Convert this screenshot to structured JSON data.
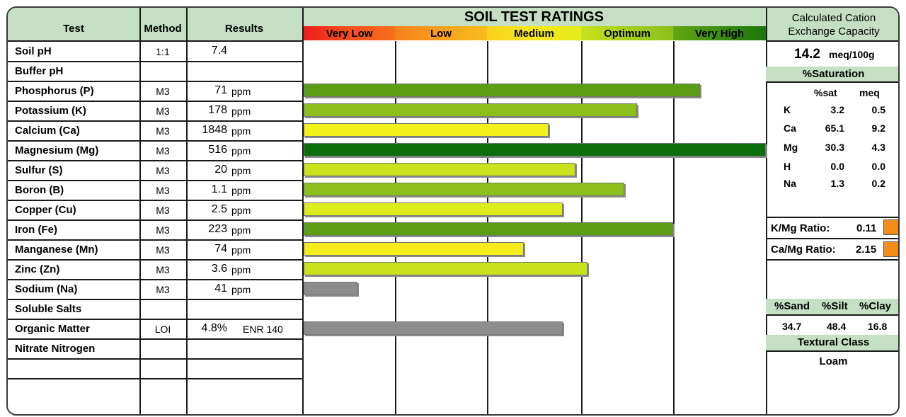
{
  "chart_data": {
    "type": "bar",
    "title": "SOIL TEST RATINGS",
    "rating_levels": [
      "Very Low",
      "Low",
      "Medium",
      "Optimum",
      "Very High"
    ],
    "columns": {
      "test": "Test",
      "method": "Method",
      "results": "Results"
    },
    "categories": [
      "Soil pH",
      "Buffer pH",
      "Phosphorus (P)",
      "Potassium (K)",
      "Calcium (Ca)",
      "Magnesium (Mg)",
      "Sulfur (S)",
      "Boron (B)",
      "Copper (Cu)",
      "Iron (Fe)",
      "Manganese (Mn)",
      "Zinc (Zn)",
      "Sodium (Na)",
      "Soluble Salts",
      "Organic Matter",
      "Nitrate Nitrogen",
      "",
      ""
    ],
    "methods": [
      "1:1",
      "",
      "M3",
      "M3",
      "M3",
      "M3",
      "M3",
      "M3",
      "M3",
      "M3",
      "M3",
      "M3",
      "M3",
      "",
      "LOI",
      "",
      "",
      ""
    ],
    "results": [
      "7.4",
      "",
      "71",
      "178",
      "1848",
      "516",
      "20",
      "1.1",
      "2.5",
      "223",
      "74",
      "3.6",
      "41",
      "",
      "4.8%",
      "",
      "",
      ""
    ],
    "units": [
      "",
      "",
      "ppm",
      "ppm",
      "ppm",
      "ppm",
      "ppm",
      "ppm",
      "ppm",
      "ppm",
      "ppm",
      "ppm",
      "ppm",
      "",
      "ENR 140",
      "",
      "",
      ""
    ],
    "ratings": [
      null,
      null,
      4.29,
      3.61,
      2.65,
      5.0,
      2.94,
      3.47,
      2.8,
      4.0,
      2.38,
      3.07,
      0.58,
      null,
      2.8,
      null,
      null,
      null
    ],
    "bar_colors": [
      null,
      null,
      "#5c9c14",
      "#8cbe1c",
      "#f2f21c",
      "#0a6e0a",
      "#c8e21c",
      "#8cbe1c",
      "#dcec1c",
      "#5c9c14",
      "#f4ec1c",
      "#c8e21c",
      "#8c8c8c",
      null,
      "#8c8c8c",
      null,
      null,
      null
    ],
    "xlim": [
      0,
      5
    ]
  },
  "cec": {
    "title": "Calculated Cation Exchange Capacity",
    "value": "14.2",
    "unit": "meq/100g"
  },
  "saturation": {
    "title": "%Saturation",
    "col1": "%sat",
    "col2": "meq",
    "rows": [
      {
        "el": "K",
        "sat": "3.2",
        "meq": "0.5"
      },
      {
        "el": "Ca",
        "sat": "65.1",
        "meq": "9.2"
      },
      {
        "el": "Mg",
        "sat": "30.3",
        "meq": "4.3"
      },
      {
        "el": "H",
        "sat": "0.0",
        "meq": "0.0"
      },
      {
        "el": "Na",
        "sat": "1.3",
        "meq": "0.2"
      }
    ]
  },
  "ratios": {
    "kmg_label": "K/Mg Ratio:",
    "kmg_value": "0.11",
    "camg_label": "Ca/Mg Ratio:",
    "camg_value": "2.15",
    "swatch_color": "#f28c1a"
  },
  "texture": {
    "sand_label": "%Sand",
    "silt_label": "%Silt",
    "clay_label": "%Clay",
    "sand": "34.7",
    "silt": "48.4",
    "clay": "16.8",
    "class_title": "Textural Class",
    "class_value": "Loam"
  }
}
